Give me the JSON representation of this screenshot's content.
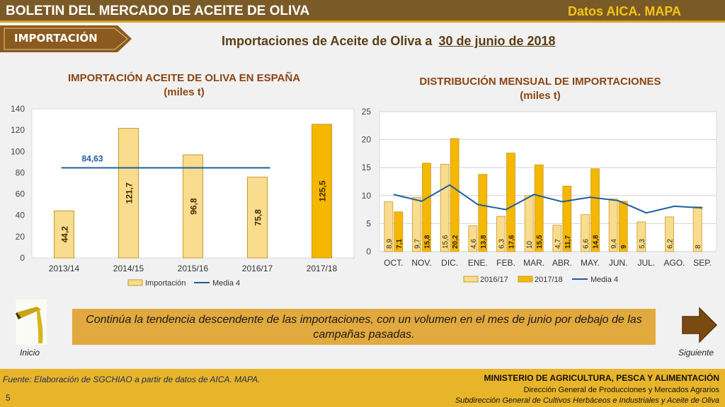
{
  "header": {
    "title": "BOLETIN DEL MERCADO DE ACEITE DE OLIVA",
    "source_tag": "Datos AICA. MAPA"
  },
  "section_tag": "IMPORTACIÓN",
  "headline": {
    "prefix": "Importaciones de Aceite de Oliva a",
    "date": "30 de junio de 2018"
  },
  "colors": {
    "light_bar": "#f9dc8e",
    "dark_bar": "#f5b700",
    "line": "#1f5e9c",
    "title": "#8b4513",
    "header_bg": "#7a5a26",
    "footer_bg": "#e8b52a"
  },
  "chart_data": [
    {
      "type": "bar",
      "title": "IMPORTACIÓN ACEITE DE OLIVA EN ESPAÑA",
      "subtitle": "(miles t)",
      "categories": [
        "2013/14",
        "2014/15",
        "2015/16",
        "2016/17",
        "2017/18"
      ],
      "series": [
        {
          "name": "Importación",
          "values": [
            44.2,
            121.7,
            96.8,
            75.8,
            125.5
          ],
          "labels": [
            "44,2",
            "121,7",
            "96,8",
            "75,8",
            "125,5"
          ]
        }
      ],
      "line": {
        "name": "Media 4",
        "value": 84.63,
        "label": "84,63"
      },
      "highlight_last": true,
      "yticks": [
        "0",
        "20",
        "40",
        "60",
        "80",
        "100",
        "120",
        "140"
      ],
      "ylim": [
        0,
        140
      ],
      "legend": "bottom"
    },
    {
      "type": "bar",
      "title": "DISTRIBUCIÓN MENSUAL DE IMPORTACIONES",
      "subtitle": "(miles t)",
      "categories": [
        "OCT.",
        "NOV.",
        "DIC.",
        "ENE.",
        "FEB.",
        "MAR.",
        "ABR.",
        "MAY.",
        "JUN.",
        "JUL.",
        "AGO.",
        "SEP."
      ],
      "series": [
        {
          "name": "2016/17",
          "values": [
            8.9,
            9.7,
            15.6,
            4.6,
            6.3,
            10,
            4.7,
            6.6,
            9.4,
            5.3,
            6.2,
            8
          ],
          "labels": [
            "8,9",
            "9,7",
            "15,6",
            "4,6",
            "6,3",
            "10",
            "4,7",
            "6,6",
            "9,4",
            "5,3",
            "6,2",
            "8"
          ]
        },
        {
          "name": "2017/18",
          "values": [
            7.1,
            15.8,
            20.2,
            13.8,
            17.6,
            15.5,
            11.7,
            14.8,
            9,
            null,
            null,
            null
          ],
          "labels": [
            "7,1",
            "15,8",
            "20,2",
            "13,8",
            "17,6",
            "15,5",
            "11,7",
            "14,8",
            "9",
            "",
            "",
            ""
          ]
        }
      ],
      "line": {
        "name": "Media 4",
        "values": [
          10.2,
          9.0,
          11.9,
          8.4,
          7.5,
          10.2,
          8.9,
          9.7,
          9.1,
          6.9,
          8.1,
          7.8
        ]
      },
      "yticks": [
        "0",
        "5",
        "10",
        "15",
        "20",
        "25"
      ],
      "ylim": [
        0,
        25
      ],
      "grid": true,
      "legend": "bottom"
    }
  ],
  "note": "Continúa la tendencia descendente de las importaciones, con un volumen en el mes de junio por debajo de las campañas pasadas.",
  "nav": {
    "prev": "Inicio",
    "next": "Siguiente"
  },
  "footer": {
    "source": "Fuente: Elaboración de SGCHIAO a partir de datos de AICA. MAPA.",
    "page": "5",
    "ministry": "MINISTERIO DE AGRICULTURA, PESCA Y ALIMENTACIÓN",
    "directorate": "Dirección General de Producciones y Mercados Agrarios",
    "subdirectorate": "Subdirección General de Cultivos Herbáceos e Industriales y Aceite de Oliva"
  }
}
